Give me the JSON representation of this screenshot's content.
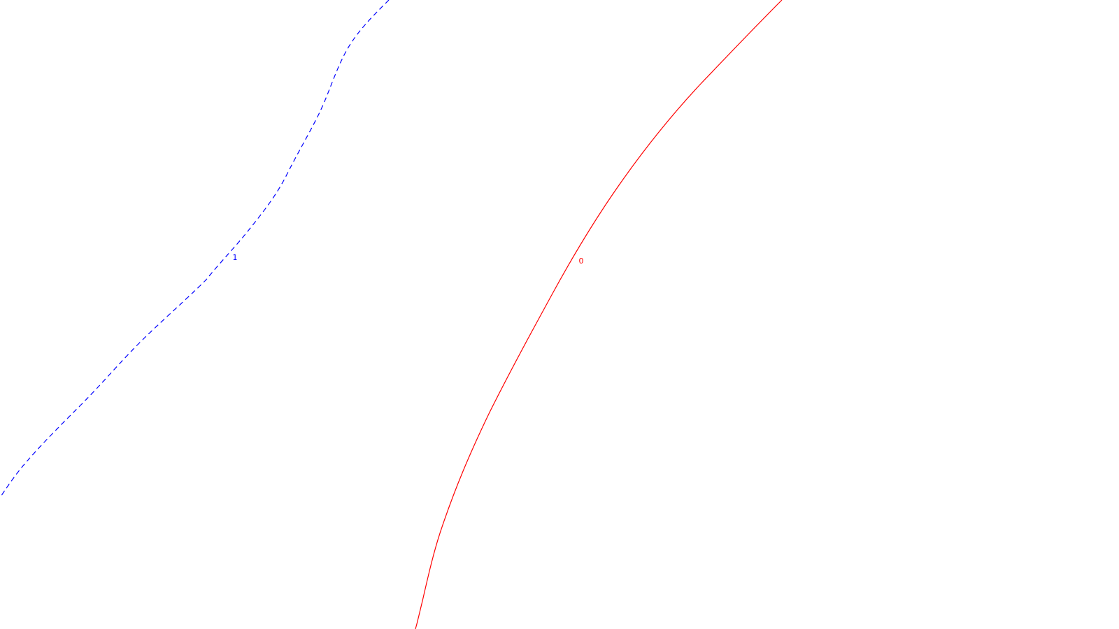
{
  "contours": [
    {
      "id": "contour-0",
      "label": "0",
      "color": "#ff0000",
      "line_style": "solid"
    },
    {
      "id": "contour-1",
      "label": "1",
      "color": "#0000ff",
      "line_style": "dashed"
    }
  ]
}
